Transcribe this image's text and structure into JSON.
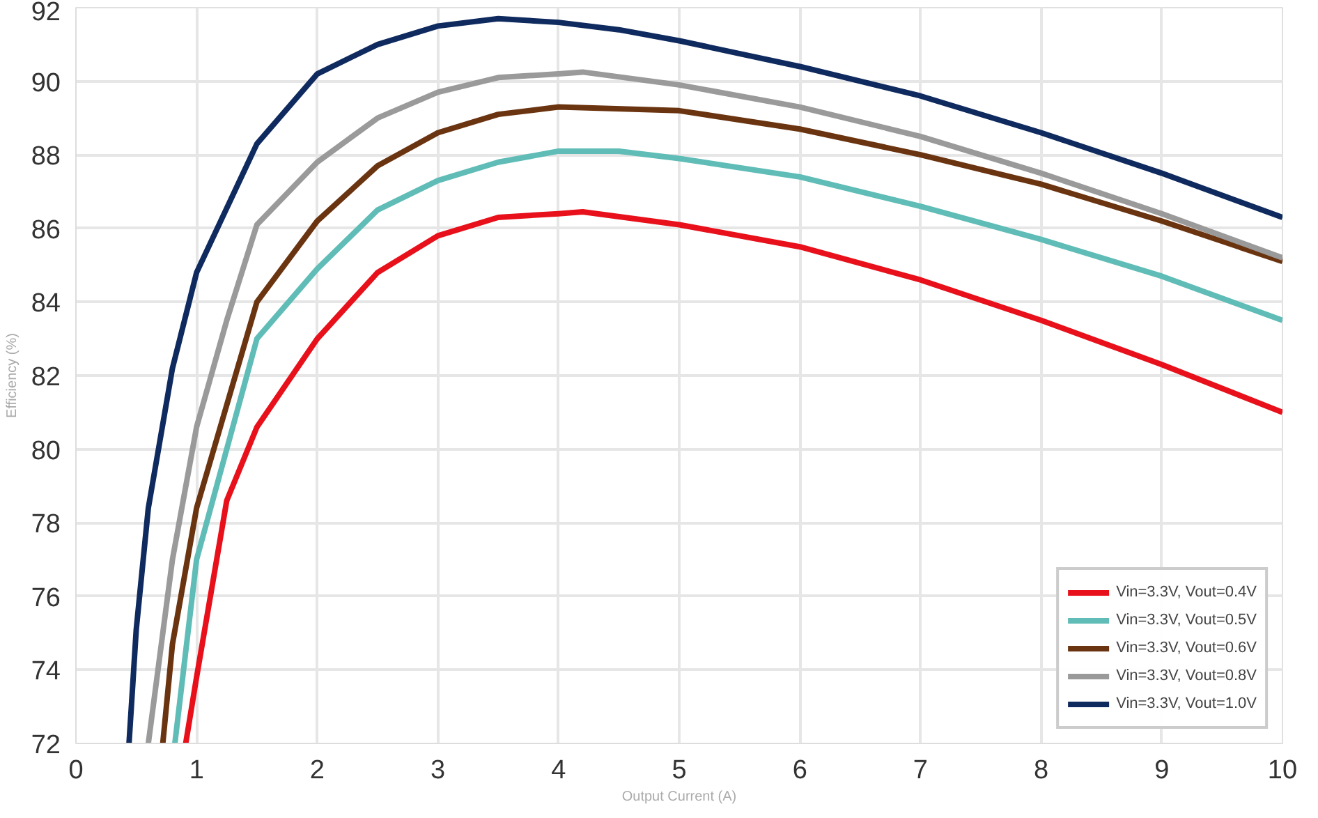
{
  "chart_data": {
    "type": "line",
    "xlabel": "Output Current (A)",
    "ylabel": "Efficiency (%)",
    "xlim": [
      0,
      10
    ],
    "ylim": [
      72,
      92
    ],
    "xticks": [
      0,
      1,
      2,
      3,
      4,
      5,
      6,
      7,
      8,
      9,
      10
    ],
    "yticks": [
      72,
      74,
      76,
      78,
      80,
      82,
      84,
      86,
      88,
      90,
      92
    ],
    "grid": true,
    "legend": "bottom right",
    "line_style": "solid",
    "series": [
      {
        "name": "Vin=3.3V, Vout=0.4V",
        "color": "#e8101a",
        "x": [
          0.91,
          1,
          1.25,
          1.5,
          2,
          2.5,
          3,
          3.5,
          4,
          4.2,
          5,
          6,
          7,
          8,
          9,
          10
        ],
        "values": [
          72,
          73.8,
          78.6,
          80.6,
          83.0,
          84.8,
          85.8,
          86.3,
          86.4,
          86.45,
          86.1,
          85.5,
          84.6,
          83.5,
          82.3,
          81.0
        ]
      },
      {
        "name": "Vin=3.3V, Vout=0.5V",
        "color": "#5fbcb6",
        "x": [
          0.82,
          1,
          1.5,
          2,
          2.5,
          3,
          3.5,
          4,
          4.5,
          5,
          6,
          7,
          8,
          9,
          10
        ],
        "values": [
          72,
          77.0,
          83.0,
          84.9,
          86.5,
          87.3,
          87.8,
          88.1,
          88.1,
          87.9,
          87.4,
          86.6,
          85.7,
          84.7,
          83.5
        ]
      },
      {
        "name": "Vin=3.3V, Vout=0.6V",
        "color": "#6b3410",
        "x": [
          0.72,
          0.8,
          1,
          1.5,
          2,
          2.5,
          3,
          3.5,
          4,
          5,
          6,
          7,
          8,
          9,
          10
        ],
        "values": [
          72,
          74.7,
          78.4,
          84.0,
          86.2,
          87.7,
          88.6,
          89.1,
          89.3,
          89.2,
          88.7,
          88.0,
          87.2,
          86.2,
          85.1
        ]
      },
      {
        "name": "Vin=3.3V, Vout=0.8V",
        "color": "#9a9a9a",
        "x": [
          0.6,
          0.8,
          1,
          1.25,
          1.5,
          2,
          2.5,
          3,
          3.5,
          4,
          4.2,
          5,
          6,
          7,
          8,
          9,
          10
        ],
        "values": [
          72,
          77.0,
          80.6,
          83.5,
          86.1,
          87.8,
          89.0,
          89.7,
          90.1,
          90.2,
          90.25,
          89.9,
          89.3,
          88.5,
          87.5,
          86.4,
          85.2
        ]
      },
      {
        "name": "Vin=3.3V, Vout=1.0V",
        "color": "#0f2a5e",
        "x": [
          0.44,
          0.5,
          0.6,
          0.8,
          1,
          1.5,
          2,
          2.5,
          3,
          3.5,
          4,
          4.5,
          5,
          6,
          7,
          8,
          9,
          10
        ],
        "values": [
          72,
          75.1,
          78.4,
          82.2,
          84.8,
          88.3,
          90.2,
          91.0,
          91.5,
          91.7,
          91.6,
          91.4,
          91.1,
          90.4,
          89.6,
          88.6,
          87.5,
          86.3
        ]
      }
    ]
  }
}
